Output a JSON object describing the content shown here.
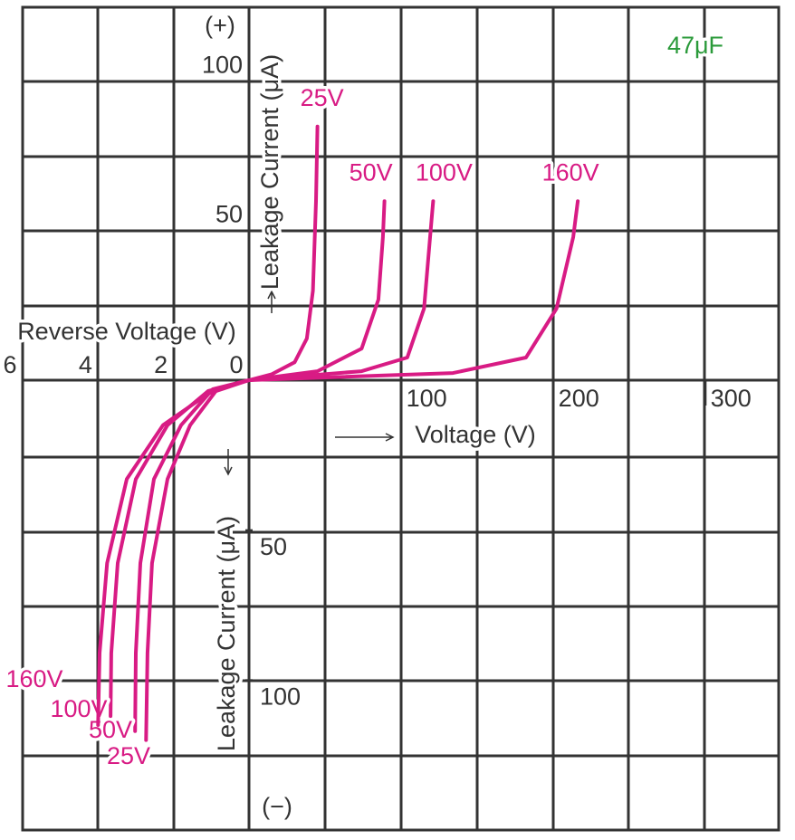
{
  "chart_data": [
    {
      "type": "line",
      "annotation": "47μF",
      "x_label": "Voltage (V)",
      "y_label": "Leakage Current (μA)",
      "y_direction_label": "(+)",
      "xlim": [
        0,
        348
      ],
      "ylim": [
        0,
        125
      ],
      "xticks": [
        100,
        200,
        300
      ],
      "yticks": [
        50,
        100
      ],
      "series": [
        {
          "name": "25V",
          "color": "#d81b84",
          "x": [
            0,
            15,
            30,
            38,
            42,
            44,
            45
          ],
          "values": [
            0,
            2,
            6,
            14,
            30,
            60,
            85
          ]
        },
        {
          "name": "50V",
          "color": "#d81b84",
          "x": [
            0,
            45,
            74,
            85,
            88,
            89
          ],
          "values": [
            0,
            3,
            10.6,
            27,
            48,
            60
          ]
        },
        {
          "name": "100V",
          "color": "#d81b84",
          "x": [
            0,
            74,
            104,
            115,
            119,
            121
          ],
          "values": [
            0,
            3,
            7.6,
            24,
            48,
            60
          ]
        },
        {
          "name": "160V",
          "color": "#d81b84",
          "x": [
            0,
            134,
            182,
            202,
            213,
            216
          ],
          "values": [
            0,
            2.4,
            7.6,
            24,
            48,
            60
          ]
        }
      ]
    },
    {
      "type": "line",
      "x_label": "Reverse Voltage (V)",
      "y_label": "Leakage Current (μA)",
      "y_direction_label": "(−)",
      "xlim": [
        0,
        6
      ],
      "ylim": [
        0,
        150
      ],
      "xticks": [
        6,
        4,
        2,
        0
      ],
      "yticks": [
        50,
        100
      ],
      "series": [
        {
          "name": "25V",
          "color": "#d81b84",
          "x": [
            0,
            0.84,
            1.56,
            2.16,
            2.57,
            2.69,
            2.73
          ],
          "values": [
            0,
            3,
            15,
            33,
            61,
            91,
            120
          ]
        },
        {
          "name": "50V",
          "color": "#d81b84",
          "x": [
            0,
            0.96,
            1.8,
            2.52,
            2.88,
            3.0,
            3.02
          ],
          "values": [
            0,
            3,
            15,
            33,
            61,
            91,
            117
          ]
        },
        {
          "name": "100V",
          "color": "#d81b84",
          "x": [
            0,
            1.08,
            2.16,
            3.0,
            3.48,
            3.65,
            3.67
          ],
          "values": [
            0,
            3.6,
            15,
            33,
            61,
            91,
            112
          ]
        },
        {
          "name": "160V",
          "color": "#d81b84",
          "x": [
            0,
            1.08,
            2.28,
            3.24,
            3.76,
            3.96,
            4.0
          ],
          "values": [
            0,
            4.5,
            15,
            33,
            61,
            91,
            115
          ]
        }
      ]
    }
  ]
}
